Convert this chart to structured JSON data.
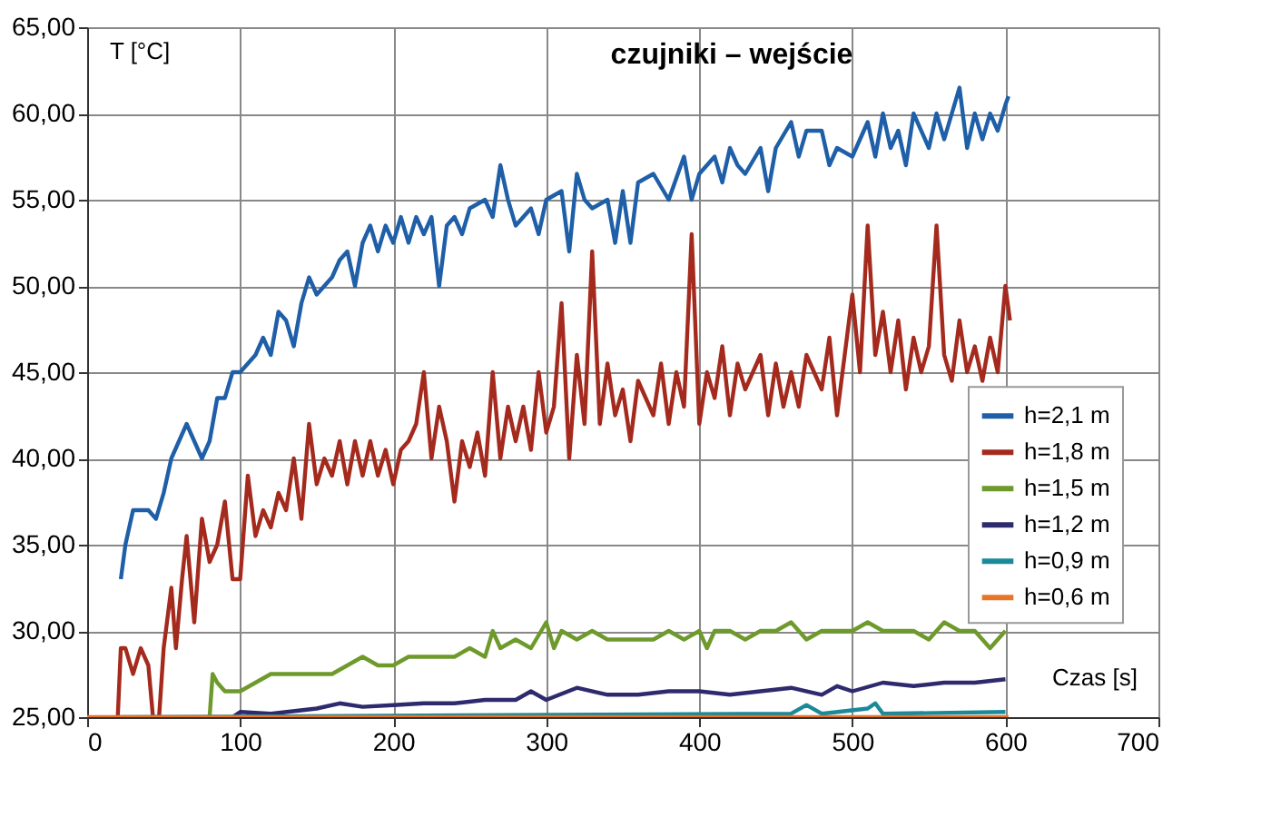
{
  "chart_data": {
    "type": "line",
    "title": "czujniki – wejście",
    "xlabel": "Czas [s]",
    "ylabel": "T [°C]",
    "xlim": [
      0,
      700
    ],
    "xticks": [
      0,
      100,
      200,
      300,
      400,
      500,
      600,
      700
    ],
    "ylim": [
      25,
      65
    ],
    "yticks": [
      {
        "value": 25,
        "label": "25,00"
      },
      {
        "value": 30,
        "label": "30,00"
      },
      {
        "value": 35,
        "label": "35,00"
      },
      {
        "value": 40,
        "label": "40,00"
      },
      {
        "value": 45,
        "label": "45,00"
      },
      {
        "value": 50,
        "label": "50,00"
      },
      {
        "value": 55,
        "label": "55,00"
      },
      {
        "value": 60,
        "label": "60,00"
      },
      {
        "value": 65,
        "label": "65,00"
      }
    ],
    "grid": true,
    "legend": "right",
    "marker": "none",
    "line_style": "solid",
    "series": [
      {
        "name": "h=2,1 m",
        "color": "#1f5fa8",
        "x": [
          22,
          25,
          30,
          40,
          45,
          50,
          55,
          60,
          65,
          70,
          75,
          80,
          85,
          90,
          95,
          100,
          110,
          115,
          120,
          125,
          130,
          135,
          140,
          145,
          150,
          160,
          165,
          170,
          175,
          180,
          185,
          190,
          195,
          200,
          205,
          210,
          215,
          220,
          225,
          230,
          235,
          240,
          245,
          250,
          260,
          265,
          270,
          275,
          280,
          290,
          295,
          300,
          310,
          315,
          320,
          325,
          330,
          340,
          345,
          350,
          355,
          360,
          370,
          380,
          390,
          395,
          400,
          410,
          415,
          420,
          425,
          430,
          440,
          445,
          450,
          460,
          465,
          470,
          480,
          485,
          490,
          500,
          510,
          515,
          520,
          525,
          530,
          535,
          540,
          550,
          555,
          560,
          570,
          575,
          580,
          585,
          590,
          595,
          600,
          602
        ],
        "values": [
          33,
          35,
          37,
          37,
          36.5,
          38,
          40,
          41,
          42,
          41,
          40,
          41,
          43.5,
          43.5,
          45,
          45,
          46,
          47,
          46,
          48.5,
          48,
          46.5,
          49,
          50.5,
          49.5,
          50.5,
          51.5,
          52,
          50,
          52.5,
          53.5,
          52,
          53.5,
          52.5,
          54,
          52.5,
          54,
          53,
          54,
          50,
          53.5,
          54,
          53,
          54.5,
          55,
          54,
          57,
          55,
          53.5,
          54.5,
          53,
          55,
          55.5,
          52,
          56.5,
          55,
          54.5,
          55,
          52.5,
          55.5,
          52.5,
          56,
          56.5,
          55,
          57.5,
          55,
          56.5,
          57.5,
          56,
          58,
          57,
          56.5,
          58,
          55.5,
          58,
          59.5,
          57.5,
          59,
          59,
          57,
          58,
          57.5,
          59.5,
          57.5,
          60,
          58,
          59,
          57,
          60,
          58,
          60,
          58.5,
          61.5,
          58,
          60,
          58.5,
          60,
          59,
          60.5,
          61
        ]
      },
      {
        "name": "h=1,8 m",
        "color": "#a52a1e",
        "x": [
          20,
          22,
          25,
          30,
          35,
          40,
          43,
          47,
          50,
          55,
          58,
          62,
          65,
          70,
          75,
          80,
          85,
          90,
          95,
          100,
          105,
          110,
          115,
          120,
          125,
          130,
          135,
          140,
          145,
          150,
          155,
          160,
          165,
          170,
          175,
          180,
          185,
          190,
          195,
          200,
          205,
          210,
          215,
          220,
          225,
          230,
          235,
          240,
          245,
          250,
          255,
          260,
          265,
          270,
          275,
          280,
          285,
          290,
          295,
          300,
          305,
          310,
          315,
          320,
          325,
          330,
          335,
          340,
          345,
          350,
          355,
          360,
          370,
          375,
          380,
          385,
          390,
          395,
          400,
          405,
          410,
          415,
          420,
          425,
          430,
          440,
          445,
          450,
          455,
          460,
          465,
          470,
          480,
          485,
          490,
          495,
          500,
          505,
          510,
          515,
          520,
          525,
          530,
          535,
          540,
          545,
          550,
          555,
          560,
          565,
          570,
          575,
          580,
          585,
          590,
          595,
          600,
          603
        ],
        "values": [
          25,
          29,
          29,
          27.5,
          29,
          28,
          25,
          25,
          29,
          32.5,
          29,
          33,
          35.5,
          30.5,
          36.5,
          34,
          35,
          37.5,
          33,
          33,
          39,
          35.5,
          37,
          36,
          38,
          37,
          40,
          36.5,
          42,
          38.5,
          40,
          39,
          41,
          38.5,
          41,
          39,
          41,
          39,
          40.5,
          38.5,
          40.5,
          41,
          42,
          45,
          40,
          43,
          41,
          37.5,
          41,
          39.5,
          41.5,
          39,
          45,
          40,
          43,
          41,
          43,
          40.5,
          45,
          41.5,
          43,
          49,
          40,
          46,
          42,
          52,
          42,
          45.5,
          42.5,
          44,
          41,
          44.5,
          42.5,
          45.5,
          42,
          45,
          43,
          53,
          42,
          45,
          43.5,
          46.5,
          42.5,
          45.5,
          44,
          46,
          42.5,
          45.5,
          43,
          45,
          43,
          46,
          44,
          47,
          42.5,
          46,
          49.5,
          45,
          53.5,
          46,
          48.5,
          45,
          48,
          44,
          47,
          45,
          46.5,
          53.5,
          46,
          44.5,
          48,
          45,
          46.5,
          44.5,
          47,
          45,
          50,
          48
        ]
      },
      {
        "name": "h=1,5 m",
        "color": "#6e9a2c",
        "x": [
          80,
          82,
          85,
          90,
          100,
          110,
          120,
          130,
          140,
          150,
          160,
          170,
          180,
          190,
          200,
          210,
          220,
          230,
          240,
          250,
          260,
          265,
          270,
          280,
          290,
          300,
          305,
          310,
          320,
          330,
          340,
          350,
          360,
          370,
          380,
          390,
          400,
          405,
          410,
          420,
          430,
          440,
          450,
          460,
          470,
          480,
          490,
          500,
          510,
          520,
          530,
          540,
          550,
          560,
          570,
          580,
          590,
          600
        ],
        "values": [
          25,
          27.5,
          27,
          26.5,
          26.5,
          27,
          27.5,
          27.5,
          27.5,
          27.5,
          27.5,
          28,
          28.5,
          28,
          28,
          28.5,
          28.5,
          28.5,
          28.5,
          29,
          28.5,
          30,
          29,
          29.5,
          29,
          30.5,
          29,
          30,
          29.5,
          30,
          29.5,
          29.5,
          29.5,
          29.5,
          30,
          29.5,
          30,
          29,
          30,
          30,
          29.5,
          30,
          30,
          30.5,
          29.5,
          30,
          30,
          30,
          30.5,
          30,
          30,
          30,
          29.5,
          30.5,
          30,
          30,
          29,
          30
        ]
      },
      {
        "name": "h=1,2 m",
        "color": "#2e2a6e",
        "x": [
          95,
          100,
          120,
          150,
          165,
          180,
          200,
          220,
          240,
          260,
          280,
          290,
          300,
          320,
          340,
          360,
          380,
          400,
          420,
          440,
          460,
          480,
          490,
          500,
          520,
          540,
          560,
          580,
          600
        ],
        "values": [
          25,
          25.3,
          25.2,
          25.5,
          25.8,
          25.6,
          25.7,
          25.8,
          25.8,
          26,
          26,
          26.5,
          26,
          26.7,
          26.3,
          26.3,
          26.5,
          26.5,
          26.3,
          26.5,
          26.7,
          26.3,
          26.8,
          26.5,
          27,
          26.8,
          27,
          27,
          27.2
        ]
      },
      {
        "name": "h=0,9 m",
        "color": "#1a8a9a",
        "x": [
          20,
          460,
          470,
          480,
          510,
          515,
          520,
          600
        ],
        "values": [
          25,
          25.2,
          25.7,
          25.2,
          25.5,
          25.8,
          25.2,
          25.3
        ]
      },
      {
        "name": "h=0,6 m",
        "color": "#e8742a",
        "x": [
          0,
          602
        ],
        "values": [
          25,
          25
        ]
      }
    ]
  }
}
